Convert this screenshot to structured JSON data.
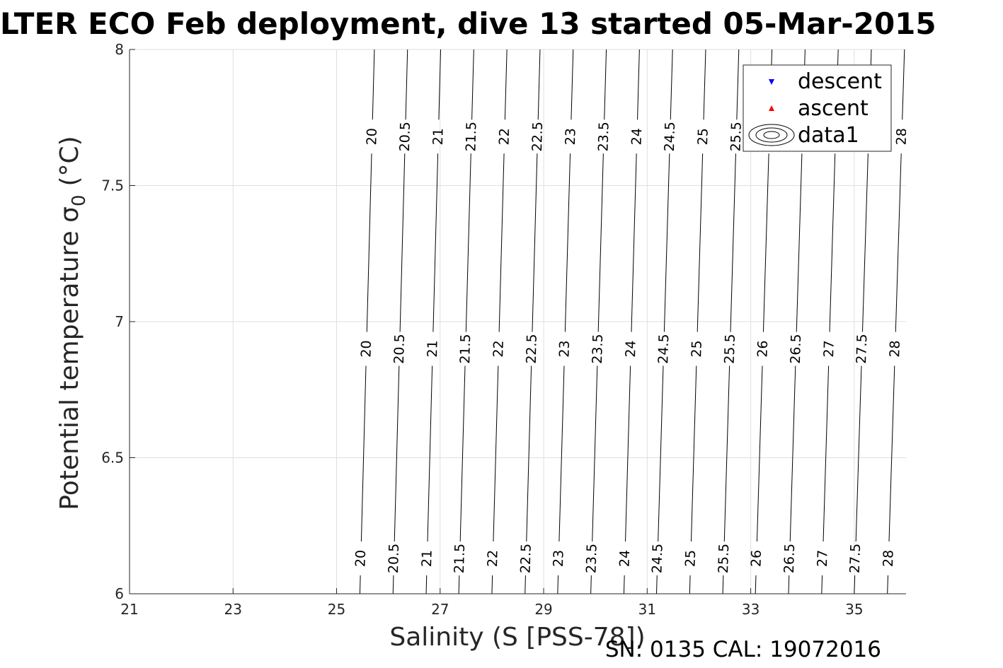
{
  "chart_data": {
    "type": "contour",
    "title": "LTER ECO Feb deployment, dive 13 started 05-Mar-2015",
    "xlabel": "Salinity (S [PSS-78])",
    "ylabel_main": "Potential temperature σ",
    "ylabel_sub": "0",
    "ylabel_unit": "(°C)",
    "xlim": [
      21,
      36
    ],
    "ylim": [
      6,
      8
    ],
    "xticks": [
      21,
      23,
      25,
      27,
      29,
      31,
      33,
      35
    ],
    "yticks": [
      6,
      6.5,
      7,
      7.5,
      8
    ],
    "grid": true,
    "legend_position": "top-right",
    "legend": [
      {
        "label": "descent",
        "marker": "triangle-down",
        "color": "#0000ff"
      },
      {
        "label": "ascent",
        "marker": "triangle-up",
        "color": "#ff0000"
      },
      {
        "label": "data1",
        "marker": "contour",
        "color": "#000000"
      }
    ],
    "contour_levels": [
      20,
      20.5,
      21,
      21.5,
      22,
      22.5,
      23,
      23.5,
      24,
      24.5,
      25,
      25.5,
      26,
      26.5,
      27,
      27.5,
      28
    ],
    "contour_lines": [
      {
        "level": 20,
        "s_at_t6": 25.45,
        "s_at_t8": 25.73
      },
      {
        "level": 20.5,
        "s_at_t6": 26.09,
        "s_at_t8": 26.37
      },
      {
        "level": 21,
        "s_at_t6": 26.73,
        "s_at_t8": 27.01
      },
      {
        "level": 21.5,
        "s_at_t6": 27.36,
        "s_at_t8": 27.65
      },
      {
        "level": 22,
        "s_at_t6": 28.0,
        "s_at_t8": 28.29
      },
      {
        "level": 22.5,
        "s_at_t6": 28.64,
        "s_at_t8": 28.93
      },
      {
        "level": 23,
        "s_at_t6": 29.27,
        "s_at_t8": 29.57
      },
      {
        "level": 23.5,
        "s_at_t6": 29.91,
        "s_at_t8": 30.21
      },
      {
        "level": 24,
        "s_at_t6": 30.55,
        "s_at_t8": 30.85
      },
      {
        "level": 24.5,
        "s_at_t6": 31.18,
        "s_at_t8": 31.49
      },
      {
        "level": 25,
        "s_at_t6": 31.82,
        "s_at_t8": 32.13
      },
      {
        "level": 25.5,
        "s_at_t6": 32.46,
        "s_at_t8": 32.77
      },
      {
        "level": 26,
        "s_at_t6": 33.09,
        "s_at_t8": 33.41
      },
      {
        "level": 26.5,
        "s_at_t6": 33.73,
        "s_at_t8": 34.05
      },
      {
        "level": 27,
        "s_at_t6": 34.37,
        "s_at_t8": 34.69
      },
      {
        "level": 27.5,
        "s_at_t6": 35.0,
        "s_at_t8": 35.33
      },
      {
        "level": 28,
        "s_at_t6": 35.64,
        "s_at_t8": 35.97
      }
    ],
    "label_rows_temperature": [
      6.13,
      6.9,
      7.68
    ],
    "series": [
      {
        "name": "descent",
        "values": []
      },
      {
        "name": "ascent",
        "values": []
      }
    ]
  },
  "footer": {
    "serial_text": "SN: 0135  CAL: 19072016"
  },
  "colors": {
    "axis": "#262626",
    "grid": "#dfdfdf",
    "contour": "#000000",
    "descent": "#0000ff",
    "ascent": "#ff0000"
  }
}
